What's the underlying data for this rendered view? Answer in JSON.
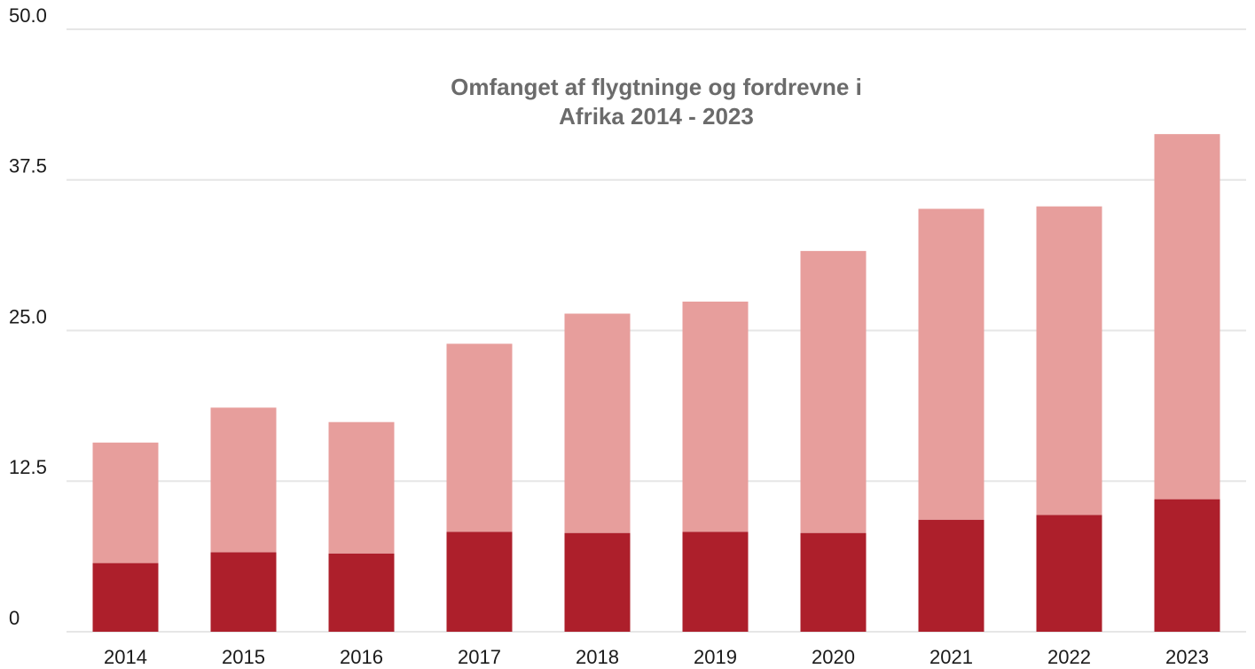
{
  "chart_data": {
    "type": "stacked-bar",
    "title": [
      "Omfanget af flygtninge og fordrevne i",
      "Afrika 2014 - 2023"
    ],
    "categories": [
      "2014",
      "2015",
      "2016",
      "2017",
      "2018",
      "2019",
      "2020",
      "2021",
      "2022",
      "2023"
    ],
    "series": [
      {
        "color": "#ad1f2b",
        "values": [
          5.7,
          6.6,
          6.5,
          8.3,
          8.2,
          8.3,
          8.2,
          9.3,
          9.7,
          11.0
        ]
      },
      {
        "color": "#e79e9c",
        "values": [
          10.0,
          12.0,
          10.9,
          15.6,
          18.2,
          19.1,
          23.4,
          25.8,
          25.6,
          30.3
        ]
      }
    ],
    "ylim": [
      0,
      50
    ],
    "yticks": [
      0,
      12.5,
      {
        "value": 25,
        "label": "25.0"
      },
      37.5,
      {
        "value": 50,
        "label": "50.0"
      }
    ],
    "grid": true
  }
}
